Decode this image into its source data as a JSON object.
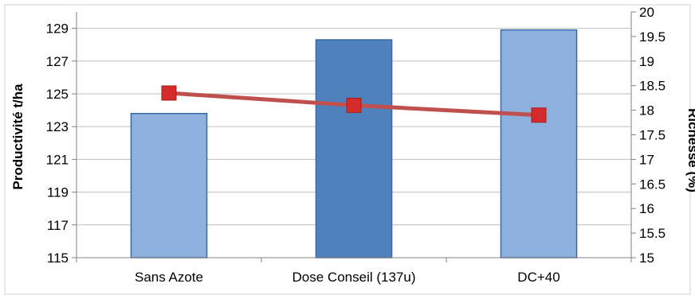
{
  "chart_data": {
    "type": "bar",
    "categories": [
      "Sans Azote",
      "Dose Conseil (137u)",
      "DC+40"
    ],
    "series": [
      {
        "kind": "bar",
        "axis": "left",
        "values": [
          123.8,
          128.3,
          128.9
        ],
        "colors": [
          "#8db0dc",
          "#4f81bd",
          "#8db0dc"
        ]
      },
      {
        "kind": "line",
        "axis": "right",
        "values": [
          18.35,
          18.1,
          17.9
        ],
        "color": "#c0504d",
        "marker_color": "#d62b2b"
      }
    ],
    "ylabel": "Productivité  t/ha",
    "ylim": [
      115,
      130
    ],
    "yticks": [
      115,
      117,
      119,
      121,
      123,
      125,
      127,
      129
    ],
    "y2label": "Richesse (%)",
    "y2lim": [
      15,
      20
    ],
    "y2ticks": [
      "15",
      "15.5",
      "16",
      "16.5",
      "17",
      "17.5",
      "18",
      "18.5",
      "19",
      "19.5",
      "20"
    ],
    "grid": true
  }
}
